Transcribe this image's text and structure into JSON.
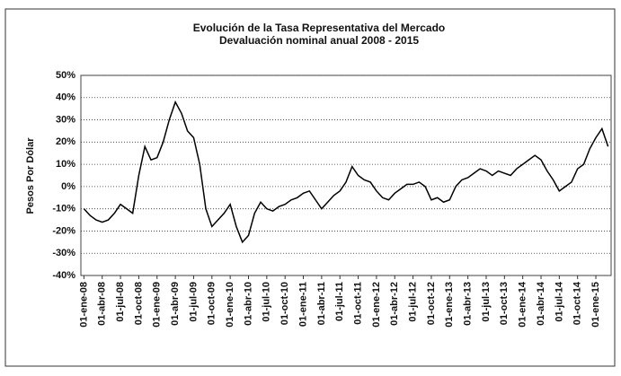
{
  "chart_data": {
    "type": "line",
    "title": "Evolución de la Tasa Representativa del Mercado",
    "subtitle": "Devaluación nominal anual 2008 - 2015",
    "y_label": "Pesos Por Dólar",
    "categories": [
      "01-ene-08",
      null,
      null,
      "01-abr-08",
      null,
      null,
      "01-jul-08",
      null,
      null,
      "01-oct-08",
      null,
      null,
      "01-ene-09",
      null,
      null,
      "01-abr-09",
      null,
      null,
      "01-jul-09",
      null,
      null,
      "01-oct-09",
      null,
      null,
      "01-ene-10",
      null,
      null,
      "01-abr-10",
      null,
      null,
      "01-jul-10",
      null,
      null,
      "01-oct-10",
      null,
      null,
      "01-ene-11",
      null,
      null,
      "01-abr-11",
      null,
      null,
      "01-jul-11",
      null,
      null,
      "01-oct-11",
      null,
      null,
      "01-ene-12",
      null,
      null,
      "01-abr-12",
      null,
      null,
      "01-jul-12",
      null,
      null,
      "01-oct-12",
      null,
      null,
      "01-ene-13",
      null,
      null,
      "01-abr-13",
      null,
      null,
      "01-jul-13",
      null,
      null,
      "01-oct-13",
      null,
      null,
      "01-ene-14",
      null,
      null,
      "01-abr-14",
      null,
      null,
      "01-jul-14",
      null,
      null,
      "01-oct-14",
      null,
      null,
      "01-ene-15",
      null,
      null
    ],
    "series": [
      {
        "name": "Devaluación",
        "color": "#000000",
        "values": [
          -10,
          -13,
          -15,
          -16,
          -15,
          -12,
          -8,
          -10,
          -12,
          5,
          18,
          12,
          13,
          20,
          30,
          38,
          33,
          25,
          22,
          10,
          -10,
          -18,
          -15,
          -12,
          -8,
          -18,
          -25,
          -22,
          -12,
          -7,
          -10,
          -11,
          -9,
          -8,
          -6,
          -5,
          -3,
          -2,
          -6,
          -10,
          -7,
          -4,
          -2,
          2,
          9,
          5,
          3,
          2,
          -2,
          -5,
          -6,
          -3,
          -1,
          1,
          1,
          2,
          0,
          -6,
          -5,
          -7,
          -6,
          0,
          3,
          4,
          6,
          8,
          7,
          5,
          7,
          6,
          5,
          8,
          10,
          12,
          14,
          12,
          7,
          3,
          -2,
          0,
          2,
          8,
          10,
          17,
          22,
          26,
          18
        ]
      }
    ],
    "ylim": [
      -40,
      50
    ],
    "yticks": [
      {
        "value": -40,
        "label": "-40%"
      },
      {
        "value": -30,
        "label": "-30%"
      },
      {
        "value": -20,
        "label": "-20%"
      },
      {
        "value": -10,
        "label": "-10%"
      },
      {
        "value": 0,
        "label": "0%"
      },
      {
        "value": 10,
        "label": "10%"
      },
      {
        "value": 20,
        "label": "20%"
      },
      {
        "value": 30,
        "label": "30%"
      },
      {
        "value": 40,
        "label": "40%"
      },
      {
        "value": 50,
        "label": "50%"
      }
    ],
    "grid": true
  }
}
